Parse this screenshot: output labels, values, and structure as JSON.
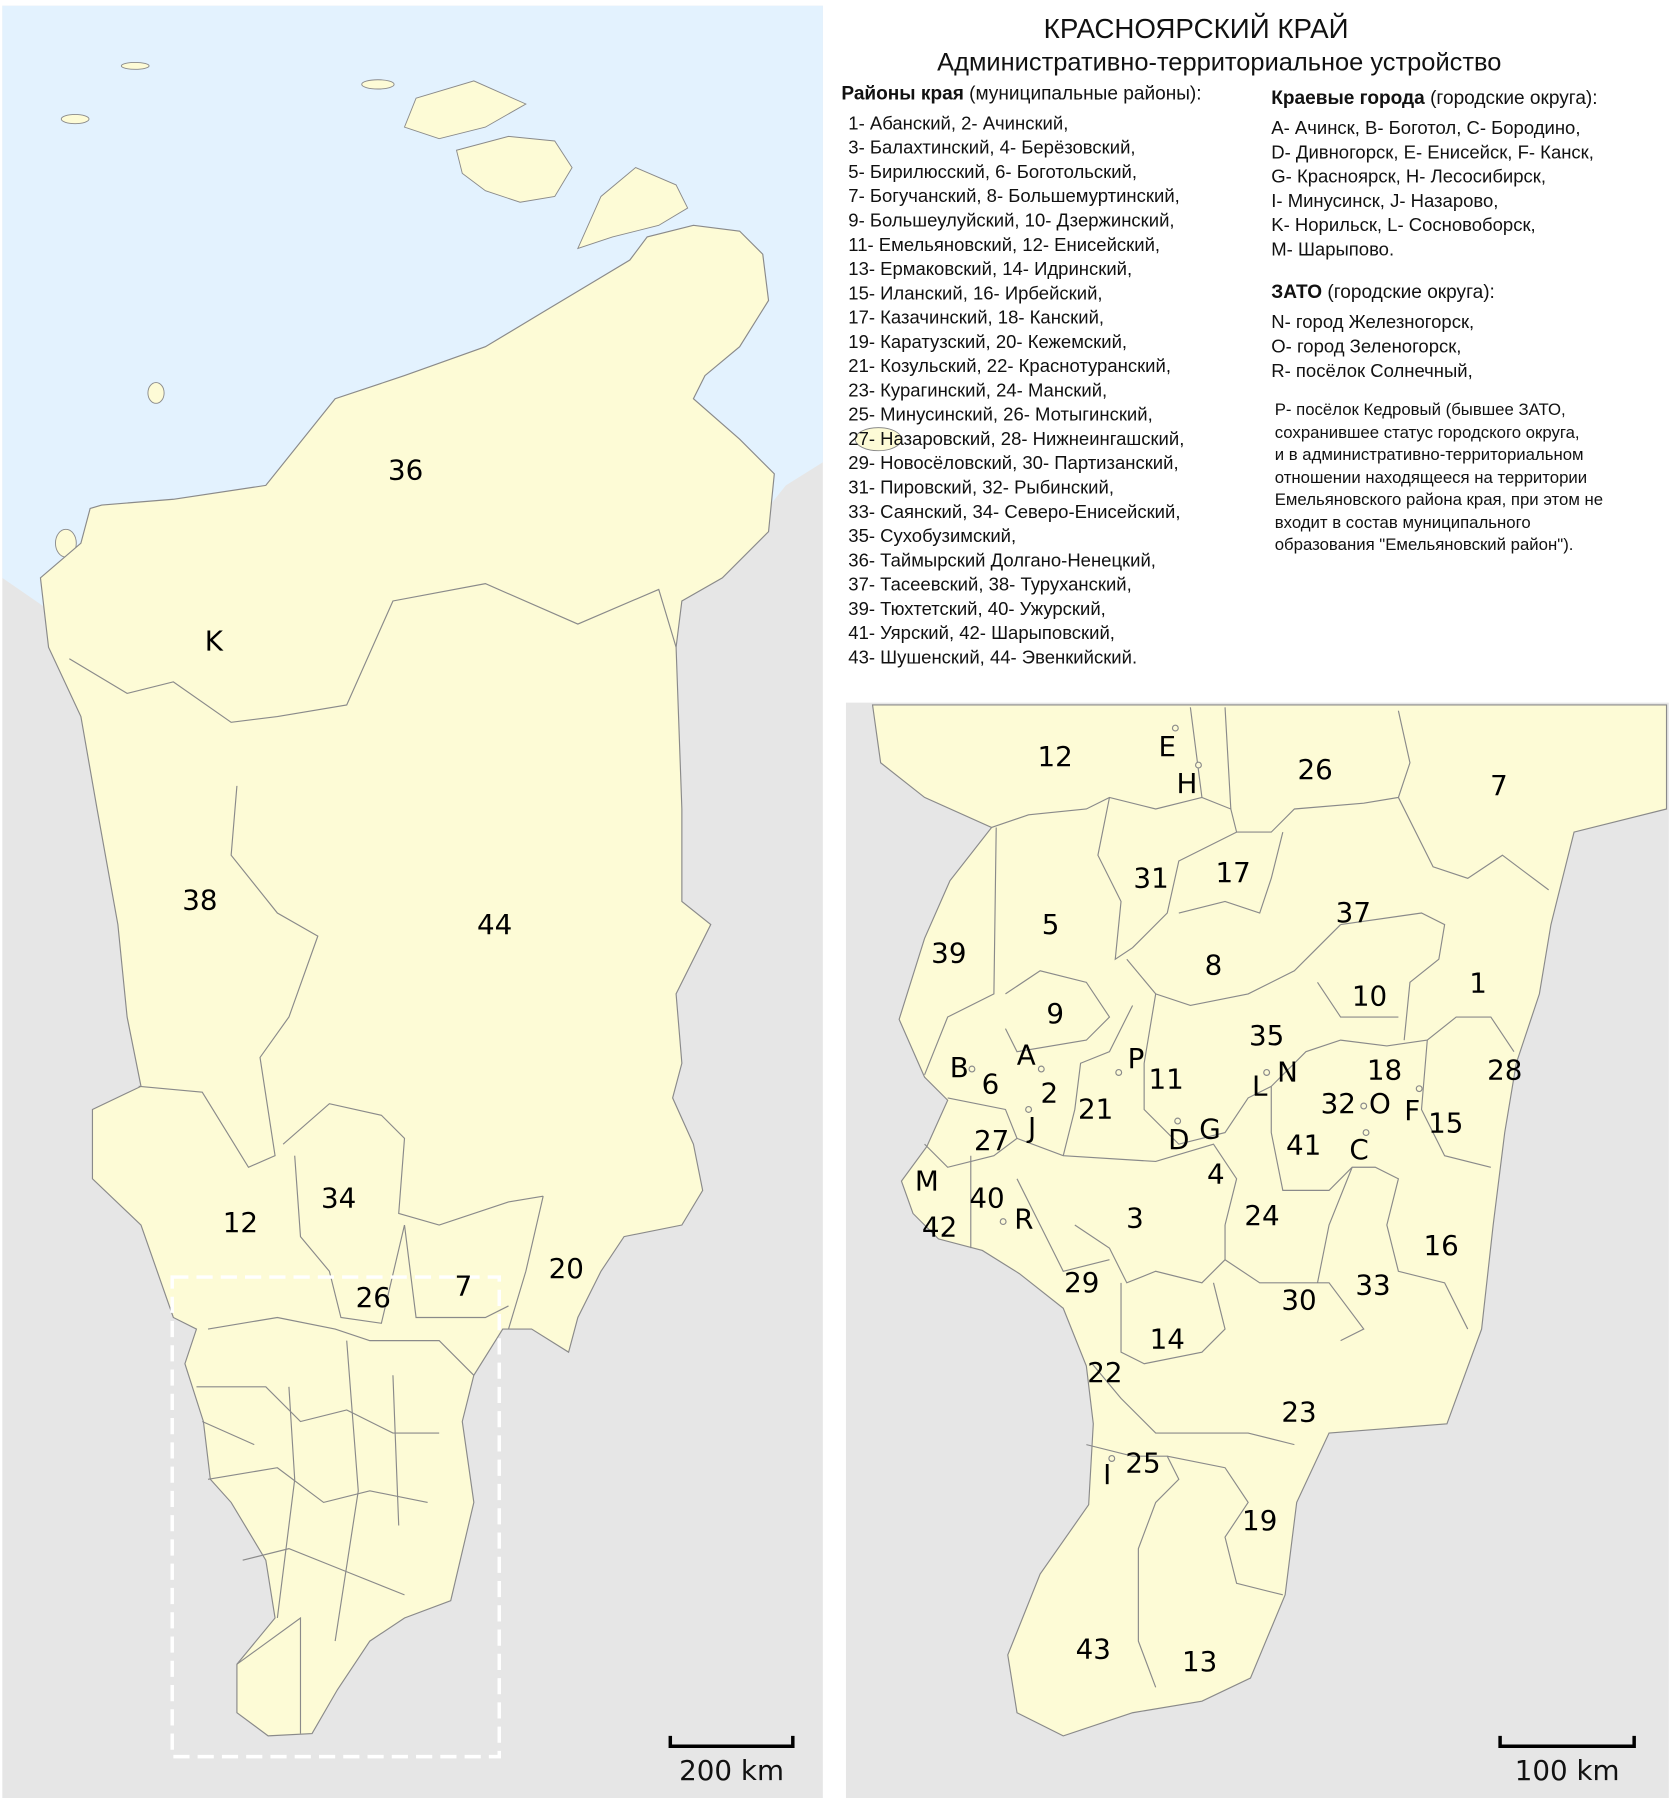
{
  "header": {
    "title": "КРАСНОЯРСКИЙ КРАЙ",
    "subtitle": "Административно-территориальное устройство"
  },
  "districts": {
    "header_bold": "Районы края",
    "header_rest": " (муниципальные районы):",
    "items": [
      "1- Абанский, 2- Ачинский,",
      "3- Балахтинский, 4- Берёзовский,",
      "5- Бирилюсский, 6- Боготольский,",
      "7- Богучанский, 8- Большемуртинский,",
      "9- Большеулуйский, 10- Дзержинский,",
      "11- Емельяновский, 12- Енисейский,",
      "13- Ермаковский, 14- Идринский,",
      "15- Иланский, 16- Ирбейский,",
      "17- Казачинский, 18- Канский,",
      "19- Каратузский, 20- Кежемский,",
      "21- Козульский, 22- Краснотуранский,",
      "23- Курагинский, 24- Манский,",
      "25- Минусинский, 26- Мотыгинский,",
      "27- Назаровский, 28- Нижнеингашский,",
      "29- Новосёловский, 30- Партизанский,",
      "31- Пировский, 32- Рыбинский,",
      "33- Саянский, 34- Северо-Енисейский,",
      "35- Сухобузимский,",
      "36- Таймырский Долгано-Ненецкий,",
      "37- Тасеевский, 38- Туруханский,",
      "39- Тюхтетский, 40- Ужурский,",
      "41- Уярский, 42- Шарыповский,",
      "43- Шушенский, 44- Эвенкийский."
    ]
  },
  "cities": {
    "header_bold": "Краевые города",
    "header_rest": " (городские округа):",
    "items": [
      "A- Ачинск, B- Боготол, C- Бородино,",
      "D- Дивногорск, E- Енисейск, F- Канск,",
      "G- Красноярск, H- Лесосибирск,",
      "I- Минусинск, J- Назарово,",
      "K- Норильск, L- Сосновоборск,",
      "M- Шарыпово."
    ]
  },
  "zato": {
    "header_bold": "ЗАТО",
    "header_rest": " (городские округа):",
    "items": [
      "N- город Железногорск,",
      "O- город Зеленогорск,",
      "R- посёлок Солнечный,"
    ]
  },
  "note": [
    "P- посёлок Кедровый (бывшее ЗАТО,",
    "сохранившее статус городского округа,",
    "и в административно-территориальном",
    "отношении находящееся на территории",
    "Емельяновского района края, при этом не",
    "входит в состав муниципального",
    "образования \"Емельяновский район\")."
  ],
  "map_overview": {
    "labels": [
      "36",
      "K",
      "38",
      "44",
      "12",
      "34",
      "26",
      "7",
      "20"
    ],
    "scale_label": "200 km"
  },
  "map_inset": {
    "labels": [
      "12",
      "E",
      "H",
      "26",
      "7",
      "31",
      "17",
      "5",
      "37",
      "39",
      "8",
      "1",
      "10",
      "9",
      "35",
      "A",
      "P",
      "11",
      "N",
      "18",
      "B",
      "6",
      "L",
      "2",
      "28",
      "O",
      "32",
      "F",
      "15",
      "21",
      "J",
      "D",
      "G",
      "27",
      "41",
      "C",
      "4",
      "M",
      "40",
      "3",
      "24",
      "42",
      "R",
      "16",
      "33",
      "29",
      "30",
      "14",
      "22",
      "23",
      "I",
      "25",
      "19",
      "43",
      "13"
    ],
    "scale_label": "100 km"
  },
  "colors": {
    "sea": "#e3f2fe",
    "region": "#fdfbd6",
    "outside": "#e6e6e6",
    "border": "#8a8a8a",
    "inset_frame": "#ffffff"
  }
}
